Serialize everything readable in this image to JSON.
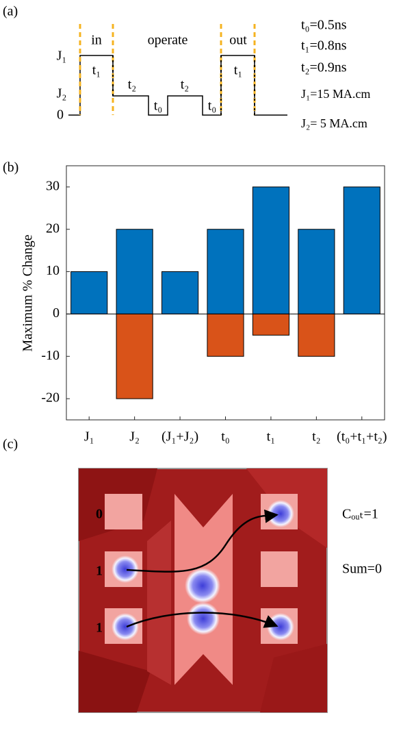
{
  "panel_labels": [
    "(a)",
    "(b)",
    "(c)"
  ],
  "panel_a": {
    "phases": [
      "in",
      "operate",
      "out"
    ],
    "levels": [
      "J₁",
      "J₂",
      "0"
    ],
    "durations": [
      "t₁",
      "t₂",
      "t₀",
      "t₂",
      "t₀",
      "t₁"
    ],
    "params": [
      "t₀=0.5ns",
      "t₁=0.8ns",
      "t₂=0.9ns",
      "J₁=15 MA.cm",
      "J₂= 5 MA.cm"
    ]
  },
  "chart_data": {
    "type": "bar",
    "y_label": "Maximum % Change",
    "categories": [
      "J₁",
      "J₂",
      "(J₁+J₂)",
      "t₀",
      "t₁",
      "t₂",
      "(t₀+t₁+t₂)"
    ],
    "series": [
      {
        "color": "#0072bd",
        "values": [
          10,
          20,
          10,
          20,
          30,
          20,
          30
        ]
      },
      {
        "color": "#d95319",
        "values": [
          null,
          -20,
          null,
          -10,
          -5,
          -10,
          null
        ]
      }
    ],
    "ylim": [
      -25,
      35
    ],
    "yticks": [
      -20,
      -10,
      0,
      10,
      20,
      30
    ]
  },
  "panel_c": {
    "inputs": [
      "0",
      "1",
      "1"
    ],
    "outputs": [
      "Cₒᵤₜ=1",
      "Sum=0"
    ]
  }
}
